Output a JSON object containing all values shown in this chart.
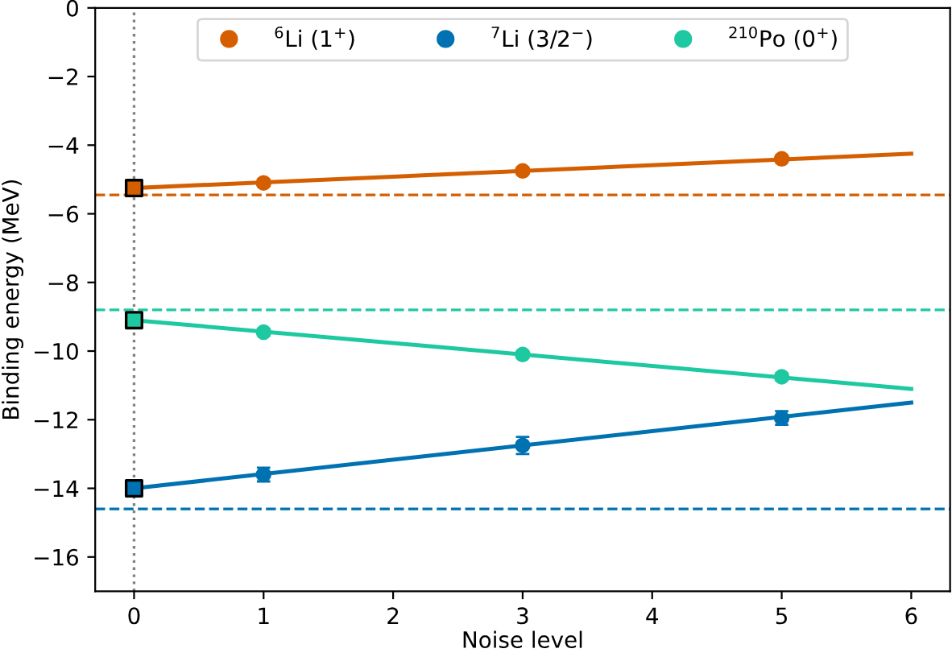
{
  "chart_data": {
    "type": "scatter",
    "xlabel": "Noise level",
    "ylabel": "Binding energy (MeV)",
    "xlim": [
      -0.3,
      6.3
    ],
    "xticks": [
      0,
      1,
      2,
      3,
      4,
      5,
      6
    ],
    "ylim": [
      -17,
      0
    ],
    "yticks": [
      {
        "value": -16,
        "label": "−16"
      },
      {
        "value": -14,
        "label": "−14"
      },
      {
        "value": -12,
        "label": "−12"
      },
      {
        "value": -10,
        "label": "−10"
      },
      {
        "value": -8,
        "label": "−8"
      },
      {
        "value": -6,
        "label": "−6"
      },
      {
        "value": -4,
        "label": "−4"
      },
      {
        "value": -2,
        "label": "−2"
      },
      0
    ],
    "grid": false,
    "legend": "top",
    "series": [
      {
        "name": "$^{6}$Li (1$^{+}$)",
        "color": "#d55e00",
        "marker": "circle",
        "x": [
          1,
          3,
          5
        ],
        "values": [
          -5.1,
          -4.75,
          -4.4
        ],
        "errors": [
          0.1,
          0.1,
          0.1
        ]
      },
      {
        "name": "$^{7}$Li (3/2$^{−}$)",
        "color": "#0072b2",
        "marker": "circle",
        "x": [
          1,
          3,
          5
        ],
        "values": [
          -13.6,
          -12.75,
          -11.95
        ],
        "errors": [
          0.2,
          0.25,
          0.2
        ]
      },
      {
        "name": "$^{210}$Po (0$^{+}$)",
        "color": "#1ec8a0",
        "marker": "circle",
        "x": [
          1,
          3,
          5
        ],
        "values": [
          -9.45,
          -10.1,
          -10.75
        ],
        "errors": [
          0.1,
          0.1,
          0.1
        ]
      },
      {
        "type": "line",
        "color": "#d55e00",
        "marker": "none",
        "x": [
          0,
          6
        ],
        "values": [
          -5.25,
          -4.25
        ]
      },
      {
        "type": "line",
        "color": "#0072b2",
        "marker": "none",
        "x": [
          0,
          6
        ],
        "values": [
          -14.0,
          -11.5
        ]
      },
      {
        "type": "line",
        "color": "#1ec8a0",
        "marker": "none",
        "x": [
          0,
          6
        ],
        "values": [
          -9.1,
          -11.1
        ]
      },
      {
        "color": "#d55e00",
        "marker": "square",
        "x": [
          0
        ],
        "values": [
          -5.25
        ]
      },
      {
        "color": "#0072b2",
        "marker": "square",
        "x": [
          0
        ],
        "values": [
          -14.0
        ]
      },
      {
        "color": "#1ec8a0",
        "marker": "square",
        "x": [
          0
        ],
        "values": [
          -9.1
        ]
      }
    ],
    "ref_lines": [
      {
        "axis": "y",
        "value": -5.45,
        "color": "#d55e00",
        "line_style": "dashed"
      },
      {
        "axis": "y",
        "value": -14.6,
        "color": "#0072b2",
        "line_style": "dashed"
      },
      {
        "axis": "y",
        "value": -8.8,
        "color": "#1ec8a0",
        "line_style": "dashed"
      },
      {
        "axis": "x",
        "value": 0,
        "color": "#808080",
        "line_style": "dotted"
      }
    ]
  }
}
